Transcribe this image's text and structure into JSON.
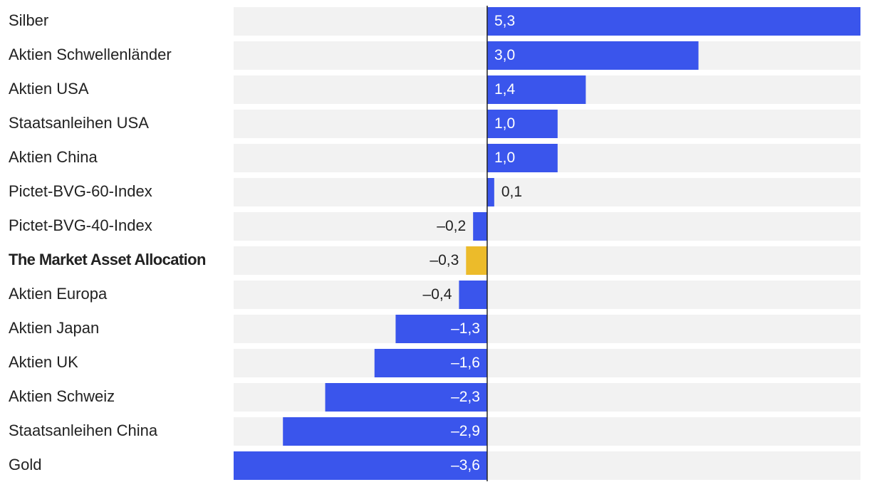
{
  "chart_data": {
    "type": "bar",
    "orientation": "horizontal",
    "categories": [
      "Silber",
      "Aktien Schwellenländer",
      "Aktien USA",
      "Staatsanleihen USA",
      "Aktien China",
      "Pictet-BVG-60-Index",
      "Pictet-BVG-40-Index",
      "The Market Asset Allocation",
      "Aktien Europa",
      "Aktien Japan",
      "Aktien UK",
      "Aktien Schweiz",
      "Staatsanleihen China",
      "Gold"
    ],
    "values": [
      5.3,
      3.0,
      1.4,
      1.0,
      1.0,
      0.1,
      -0.2,
      -0.3,
      -0.4,
      -1.3,
      -1.6,
      -2.3,
      -2.9,
      -3.6
    ],
    "value_labels": [
      "5,3",
      "3,0",
      "1,4",
      "1,0",
      "1,0",
      "0,1",
      "–0,2",
      "–0,3",
      "–0,4",
      "–1,3",
      "–1,6",
      "–2,3",
      "–2,9",
      "–3,6"
    ],
    "highlight_category": "The Market Asset Allocation",
    "xlim": [
      -3.6,
      5.3
    ],
    "title": "",
    "xlabel": "",
    "ylabel": "",
    "grid": false,
    "colors": {
      "bar": "#3a55ec",
      "highlight": "#ecbb2a",
      "track": "#f2f2f2",
      "zero_line": "#222222",
      "label_inside": "#ffffff",
      "label_outside": "#222222",
      "category_text": "#222222"
    }
  }
}
